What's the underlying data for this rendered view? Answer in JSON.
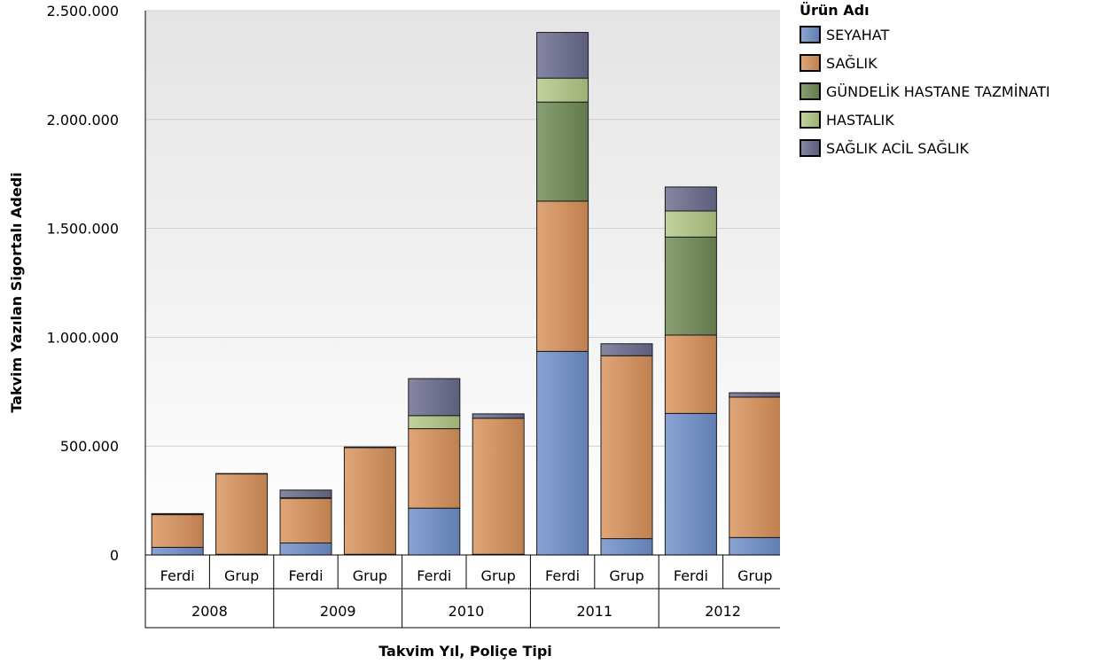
{
  "chart_data": {
    "type": "bar",
    "stacked": true,
    "ylabel": "Takvim Yazılan Sigortalı Adedi",
    "xlabel": "Takvim Yıl, Poliçe Tipi",
    "ylim": [
      0,
      2500000
    ],
    "yticks": [
      "0",
      "500.000",
      "1.000.000",
      "1.500.000",
      "2.000.000",
      "2.500.000"
    ],
    "ytick_values": [
      0,
      500000,
      1000000,
      1500000,
      2000000,
      2500000
    ],
    "grid": true,
    "legend_position": "top-right",
    "legend_title": "Ürün Adı",
    "years": [
      "2008",
      "2009",
      "2010",
      "2011",
      "2012"
    ],
    "categories": [
      "Ferdi",
      "Grup",
      "Ferdi",
      "Grup",
      "Ferdi",
      "Grup",
      "Ferdi",
      "Grup",
      "Ferdi",
      "Grup"
    ],
    "series": [
      {
        "name": "SEYAHAT",
        "color": "#6f8fca",
        "values": [
          35000,
          3000,
          55000,
          3000,
          215000,
          3000,
          935000,
          75000,
          650000,
          80000
        ]
      },
      {
        "name": "SAĞLIK",
        "color": "#d9925a",
        "values": [
          150000,
          370000,
          205000,
          490000,
          365000,
          625000,
          690000,
          840000,
          360000,
          645000
        ]
      },
      {
        "name": "GÜNDELİK HASTANE TAZMİNATI",
        "color": "#6e8a55",
        "values": [
          0,
          0,
          0,
          0,
          0,
          0,
          455000,
          0,
          450000,
          0
        ]
      },
      {
        "name": "HASTALIK",
        "color": "#b3c886",
        "values": [
          2000,
          0,
          3000,
          0,
          60000,
          0,
          110000,
          0,
          120000,
          0
        ]
      },
      {
        "name": "SAĞLIK ACİL SAĞLIK",
        "color": "#6a6b8e",
        "values": [
          3000,
          1000,
          35000,
          3000,
          170000,
          20000,
          210000,
          55000,
          110000,
          20000
        ]
      }
    ]
  }
}
